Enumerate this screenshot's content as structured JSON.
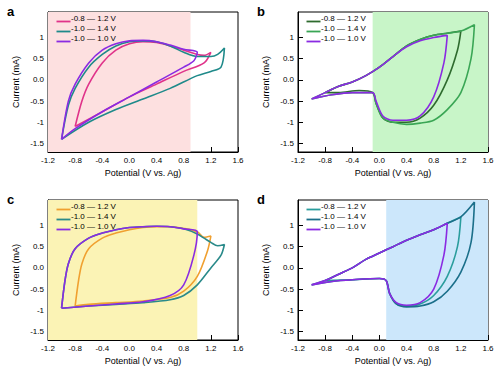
{
  "chart_data": [
    {
      "type": "line",
      "title": "a",
      "x_label": "Potential (V vs. Ag)",
      "y_label": "Current (mA)",
      "xlim": [
        -1.2,
        1.6
      ],
      "xticks": [
        -1.2,
        -0.8,
        -0.4,
        {
          "value": 0,
          "label": "0.0"
        },
        0.4,
        0.8,
        1.2,
        1.6
      ],
      "ylim": [
        -1.7,
        1.6
      ],
      "yticks": [
        -1.5,
        -1.0,
        -0.5,
        {
          "value": 0,
          "label": "0.0"
        },
        0.5,
        1.0
      ],
      "legend": "upper left",
      "shaded_region": {
        "x": [
          -1.2,
          0.9
        ],
        "color": "#fde0e0"
      },
      "series": [
        {
          "name": "-0.8 — 1.2 V",
          "color": "#e0338a",
          "x": [
            -0.8,
            -0.7,
            -0.6,
            -0.4,
            -0.2,
            0,
            0.2,
            0.4,
            0.6,
            0.8,
            1.0,
            1.1,
            1.2,
            1.1,
            0.8,
            0.4,
            0,
            -0.4,
            -0.8
          ],
          "values": [
            -1.1,
            -0.5,
            -0.1,
            0.4,
            0.7,
            0.85,
            0.9,
            0.88,
            0.8,
            0.7,
            0.6,
            0.58,
            0.65,
            0.4,
            0.2,
            -0.1,
            -0.4,
            -0.75,
            -1.1
          ]
        },
        {
          "name": "-1.0 — 1.4 V",
          "color": "#1f8a8a",
          "x": [
            -1.0,
            -0.9,
            -0.8,
            -0.6,
            -0.4,
            -0.2,
            0,
            0.2,
            0.4,
            0.6,
            0.8,
            1.0,
            1.2,
            1.3,
            1.4,
            1.35,
            1.2,
            1.0,
            0.6,
            0.2,
            -0.2,
            -0.6,
            -1.0
          ],
          "values": [
            -1.4,
            -0.6,
            -0.2,
            0.3,
            0.6,
            0.8,
            0.9,
            0.92,
            0.9,
            0.8,
            0.65,
            0.55,
            0.55,
            0.6,
            0.75,
            0.3,
            0.2,
            0.1,
            -0.2,
            -0.45,
            -0.7,
            -1.0,
            -1.4
          ]
        },
        {
          "name": "-1.0 — 1.0 V",
          "color": "#8a2be2",
          "x": [
            -1.0,
            -0.9,
            -0.8,
            -0.6,
            -0.4,
            -0.2,
            0,
            0.2,
            0.4,
            0.6,
            0.8,
            1.0,
            0.95,
            0.8,
            0.4,
            0,
            -0.4,
            -0.8,
            -1.0
          ],
          "values": [
            -1.4,
            -0.5,
            -0.1,
            0.4,
            0.7,
            0.85,
            0.92,
            0.93,
            0.9,
            0.82,
            0.72,
            0.65,
            0.45,
            0.3,
            -0.05,
            -0.4,
            -0.75,
            -1.15,
            -1.4
          ]
        }
      ]
    },
    {
      "type": "line",
      "title": "b",
      "x_label": "Potential (V vs. Ag)",
      "y_label": "Current (mA)",
      "xlim": [
        -1.2,
        1.6
      ],
      "xticks": [
        -1.2,
        -0.8,
        -0.4,
        {
          "value": 0,
          "label": "0.0"
        },
        0.4,
        0.8,
        1.2,
        1.6
      ],
      "ylim": [
        -1.7,
        1.6
      ],
      "yticks": [
        -1.5,
        -1.0,
        -0.5,
        {
          "value": 0,
          "label": "0.0"
        },
        0.5,
        1.0
      ],
      "legend": "upper left",
      "shaded_region": {
        "x": [
          -0.1,
          1.6
        ],
        "color": "#c8f5c8"
      },
      "series": [
        {
          "name": "-0.8 — 1.2 V",
          "color": "#2e6b2e",
          "x": [
            -0.8,
            -0.6,
            -0.4,
            -0.2,
            0,
            0.2,
            0.4,
            0.6,
            0.8,
            1.0,
            1.2,
            1.15,
            1.0,
            0.8,
            0.6,
            0.4,
            0.2,
            0.05,
            -0.05,
            -0.1,
            -0.3,
            -0.6,
            -0.8
          ],
          "values": [
            -0.3,
            -0.15,
            -0.05,
            0.1,
            0.3,
            0.55,
            0.8,
            0.95,
            1.05,
            1.1,
            1.15,
            0.7,
            0.0,
            -0.6,
            -0.9,
            -1.0,
            -1.0,
            -0.9,
            -0.55,
            -0.3,
            -0.25,
            -0.3,
            -0.3
          ]
        },
        {
          "name": "-1.0 — 1.4 V",
          "color": "#3aa655",
          "x": [
            -1.0,
            -0.8,
            -0.6,
            -0.4,
            -0.2,
            0,
            0.2,
            0.4,
            0.6,
            0.8,
            1.0,
            1.2,
            1.4,
            1.35,
            1.2,
            1.0,
            0.8,
            0.6,
            0.4,
            0.2,
            0.05,
            -0.05,
            -0.1,
            -0.4,
            -0.7,
            -1.0
          ],
          "values": [
            -0.45,
            -0.3,
            -0.15,
            -0.05,
            0.1,
            0.3,
            0.55,
            0.8,
            0.95,
            1.05,
            1.1,
            1.15,
            1.3,
            0.5,
            -0.3,
            -0.7,
            -0.95,
            -1.02,
            -1.05,
            -1.0,
            -0.9,
            -0.55,
            -0.3,
            -0.3,
            -0.35,
            -0.45
          ]
        },
        {
          "name": "-1.0 — 1.0 V",
          "color": "#8a2be2",
          "x": [
            -1.0,
            -0.8,
            -0.6,
            -0.4,
            -0.2,
            0,
            0.2,
            0.4,
            0.6,
            0.8,
            1.0,
            0.95,
            0.8,
            0.6,
            0.4,
            0.2,
            0.05,
            -0.05,
            -0.1,
            -0.4,
            -0.7,
            -1.0
          ],
          "values": [
            -0.45,
            -0.3,
            -0.15,
            -0.05,
            0.1,
            0.3,
            0.55,
            0.78,
            0.92,
            1.0,
            1.05,
            0.4,
            -0.4,
            -0.85,
            -0.95,
            -0.95,
            -0.85,
            -0.5,
            -0.3,
            -0.3,
            -0.35,
            -0.45
          ]
        }
      ]
    },
    {
      "type": "line",
      "title": "c",
      "x_label": "Potential (V vs. Ag)",
      "y_label": "Current (mA)",
      "xlim": [
        -1.2,
        1.6
      ],
      "xticks": [
        -1.2,
        -0.8,
        -0.4,
        {
          "value": 0,
          "label": "0.0"
        },
        0.4,
        0.8,
        1.2,
        1.6
      ],
      "ylim": [
        -1.7,
        1.6
      ],
      "yticks": [
        -1.5,
        -1.0,
        -0.5,
        {
          "value": 0,
          "label": "0.0"
        },
        0.5,
        1.0
      ],
      "legend": "upper left",
      "shaded_region": {
        "x": [
          -1.2,
          1.0
        ],
        "color": "#fbf3b5"
      },
      "series": [
        {
          "name": "-0.8 — 1.2 V",
          "color": "#f0a030",
          "x": [
            -0.8,
            -0.75,
            -0.7,
            -0.6,
            -0.4,
            -0.2,
            0,
            0.2,
            0.4,
            0.6,
            0.8,
            1.0,
            1.1,
            1.2,
            1.15,
            1.0,
            0.8,
            0.6,
            0.2,
            -0.2,
            -0.6,
            -0.8
          ],
          "values": [
            -0.9,
            -0.3,
            0.1,
            0.45,
            0.7,
            0.82,
            0.9,
            0.95,
            0.97,
            0.97,
            0.93,
            0.85,
            0.72,
            0.75,
            0.4,
            -0.2,
            -0.55,
            -0.7,
            -0.78,
            -0.82,
            -0.86,
            -0.9
          ]
        },
        {
          "name": "-1.0 — 1.4 V",
          "color": "#2a8a8a",
          "x": [
            -1.0,
            -0.95,
            -0.9,
            -0.8,
            -0.6,
            -0.4,
            -0.2,
            0,
            0.2,
            0.4,
            0.6,
            0.8,
            1.0,
            1.1,
            1.2,
            1.3,
            1.4,
            1.35,
            1.2,
            1.0,
            0.8,
            0.6,
            0.2,
            -0.2,
            -0.6,
            -1.0
          ],
          "values": [
            -0.95,
            -0.3,
            0.1,
            0.45,
            0.7,
            0.82,
            0.9,
            0.95,
            0.97,
            0.98,
            0.97,
            0.92,
            0.8,
            0.7,
            0.6,
            0.52,
            0.55,
            0.3,
            0.0,
            -0.4,
            -0.65,
            -0.75,
            -0.82,
            -0.86,
            -0.9,
            -0.95
          ]
        },
        {
          "name": "-1.0 — 1.0 V",
          "color": "#8a2be2",
          "x": [
            -1.0,
            -0.95,
            -0.9,
            -0.8,
            -0.6,
            -0.4,
            -0.2,
            0,
            0.2,
            0.4,
            0.6,
            0.8,
            1.0,
            0.95,
            0.8,
            0.6,
            0.2,
            -0.2,
            -0.6,
            -1.0
          ],
          "values": [
            -0.95,
            -0.3,
            0.1,
            0.45,
            0.7,
            0.82,
            0.9,
            0.95,
            0.97,
            0.98,
            0.97,
            0.92,
            0.85,
            0.3,
            -0.4,
            -0.65,
            -0.8,
            -0.85,
            -0.9,
            -0.95
          ]
        }
      ]
    },
    {
      "type": "line",
      "title": "d",
      "x_label": "Potential (V vs. Ag)",
      "y_label": "Current (mA)",
      "xlim": [
        -1.2,
        1.6
      ],
      "xticks": [
        -1.2,
        -0.8,
        -0.4,
        {
          "value": 0,
          "label": "0.0"
        },
        0.4,
        0.8,
        1.2,
        1.6
      ],
      "ylim": [
        -1.7,
        1.6
      ],
      "yticks": [
        -1.5,
        -1.0,
        -0.5,
        {
          "value": 0,
          "label": "0.0"
        },
        0.5,
        1.0
      ],
      "legend": "upper left",
      "shaded_region": {
        "x": [
          0.1,
          1.6
        ],
        "color": "#cce7fb"
      },
      "series": [
        {
          "name": "-0.8 — 1.2 V",
          "color": "#2a9d9d",
          "x": [
            -0.8,
            -0.6,
            -0.4,
            -0.2,
            0,
            0.2,
            0.4,
            0.6,
            0.8,
            1.0,
            1.2,
            1.15,
            1.0,
            0.8,
            0.6,
            0.4,
            0.25,
            0.15,
            0.1,
            0.0,
            -0.4,
            -0.8
          ],
          "values": [
            -0.3,
            -0.15,
            0.0,
            0.2,
            0.35,
            0.5,
            0.65,
            0.78,
            0.9,
            1.05,
            1.2,
            0.5,
            -0.2,
            -0.65,
            -0.85,
            -0.9,
            -0.85,
            -0.6,
            -0.3,
            -0.25,
            -0.28,
            -0.3
          ]
        },
        {
          "name": "-1.0 — 1.4 V",
          "color": "#1b6f8a",
          "x": [
            -1.0,
            -0.8,
            -0.6,
            -0.4,
            -0.2,
            0,
            0.2,
            0.4,
            0.6,
            0.8,
            1.0,
            1.2,
            1.4,
            1.35,
            1.2,
            1.0,
            0.8,
            0.6,
            0.4,
            0.25,
            0.15,
            0.1,
            0.0,
            -0.4,
            -0.7,
            -1.0
          ],
          "values": [
            -0.4,
            -0.3,
            -0.15,
            0.0,
            0.2,
            0.35,
            0.5,
            0.65,
            0.78,
            0.9,
            1.05,
            1.2,
            1.55,
            0.6,
            -0.1,
            -0.55,
            -0.8,
            -0.9,
            -0.92,
            -0.85,
            -0.6,
            -0.3,
            -0.25,
            -0.28,
            -0.32,
            -0.4
          ]
        },
        {
          "name": "-1.0 — 1.0 V",
          "color": "#8a2be2",
          "x": [
            -1.0,
            -0.8,
            -0.6,
            -0.4,
            -0.2,
            0,
            0.2,
            0.4,
            0.6,
            0.8,
            1.0,
            0.95,
            0.8,
            0.6,
            0.4,
            0.25,
            0.15,
            0.1,
            0.0,
            -0.4,
            -0.7,
            -1.0
          ],
          "values": [
            -0.4,
            -0.3,
            -0.15,
            0.0,
            0.2,
            0.35,
            0.5,
            0.65,
            0.78,
            0.9,
            1.05,
            0.3,
            -0.5,
            -0.82,
            -0.88,
            -0.82,
            -0.6,
            -0.3,
            -0.25,
            -0.28,
            -0.32,
            -0.4
          ]
        }
      ]
    }
  ]
}
